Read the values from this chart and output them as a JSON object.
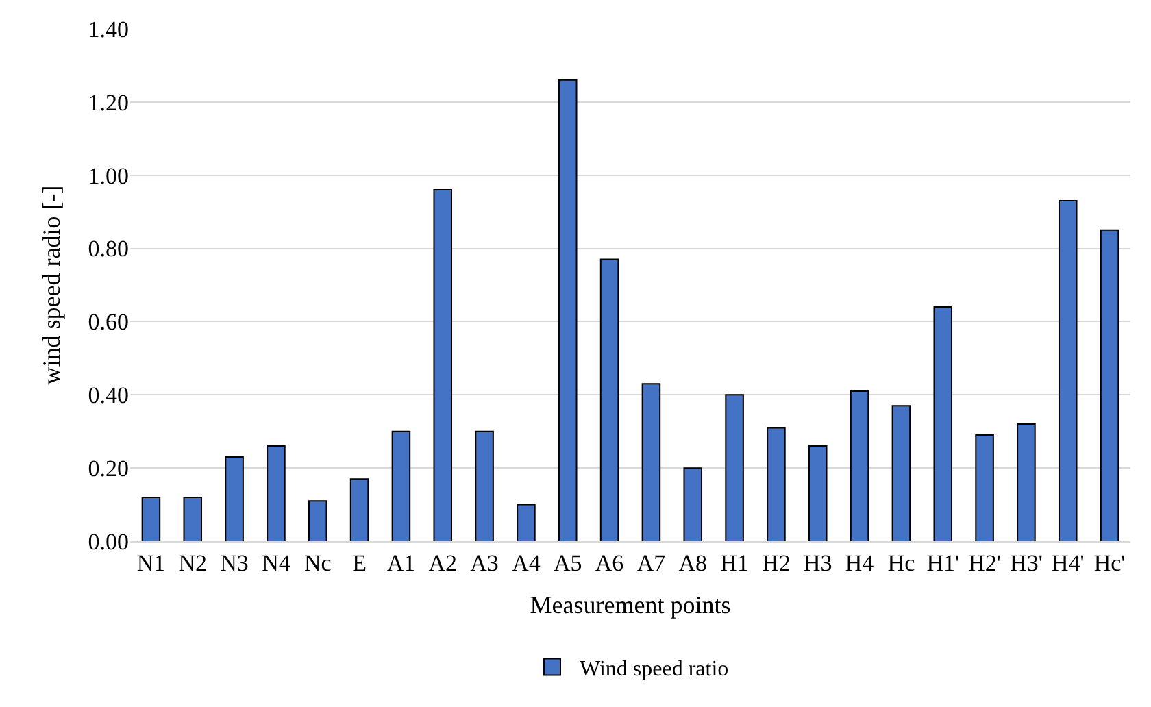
{
  "chart_data": {
    "type": "bar",
    "xlabel": "Measurement points",
    "ylabel": "wind speed radio [-]",
    "categories": [
      "N1",
      "N2",
      "N3",
      "N4",
      "Nc",
      "E",
      "A1",
      "A2",
      "A3",
      "A4",
      "A5",
      "A6",
      "A7",
      "A8",
      "H1",
      "H2",
      "H3",
      "H4",
      "Hc",
      "H1'",
      "H2'",
      "H3'",
      "H4'",
      "Hc'"
    ],
    "series": [
      {
        "name": "Wind speed ratio",
        "color": "#4472c4",
        "values": [
          0.12,
          0.12,
          0.23,
          0.26,
          0.11,
          0.17,
          0.3,
          0.96,
          0.3,
          0.1,
          1.26,
          0.77,
          0.43,
          0.2,
          0.4,
          0.31,
          0.26,
          0.41,
          0.37,
          0.64,
          0.29,
          0.32,
          0.93,
          0.85
        ]
      }
    ],
    "ylim": [
      0,
      1.4
    ],
    "yticks": [
      {
        "value": 0,
        "label": "0.00"
      },
      {
        "value": 0.2,
        "label": "0.20"
      },
      {
        "value": 0.4,
        "label": "0.40"
      },
      {
        "value": 0.6,
        "label": "0.60"
      },
      {
        "value": 0.8,
        "label": "0.80"
      },
      {
        "value": 1.0,
        "label": "1.00"
      },
      {
        "value": 1.2,
        "label": "1.20"
      },
      {
        "value": 1.4,
        "label": "1.40"
      }
    ],
    "grid": "y",
    "legend": "bottom"
  }
}
